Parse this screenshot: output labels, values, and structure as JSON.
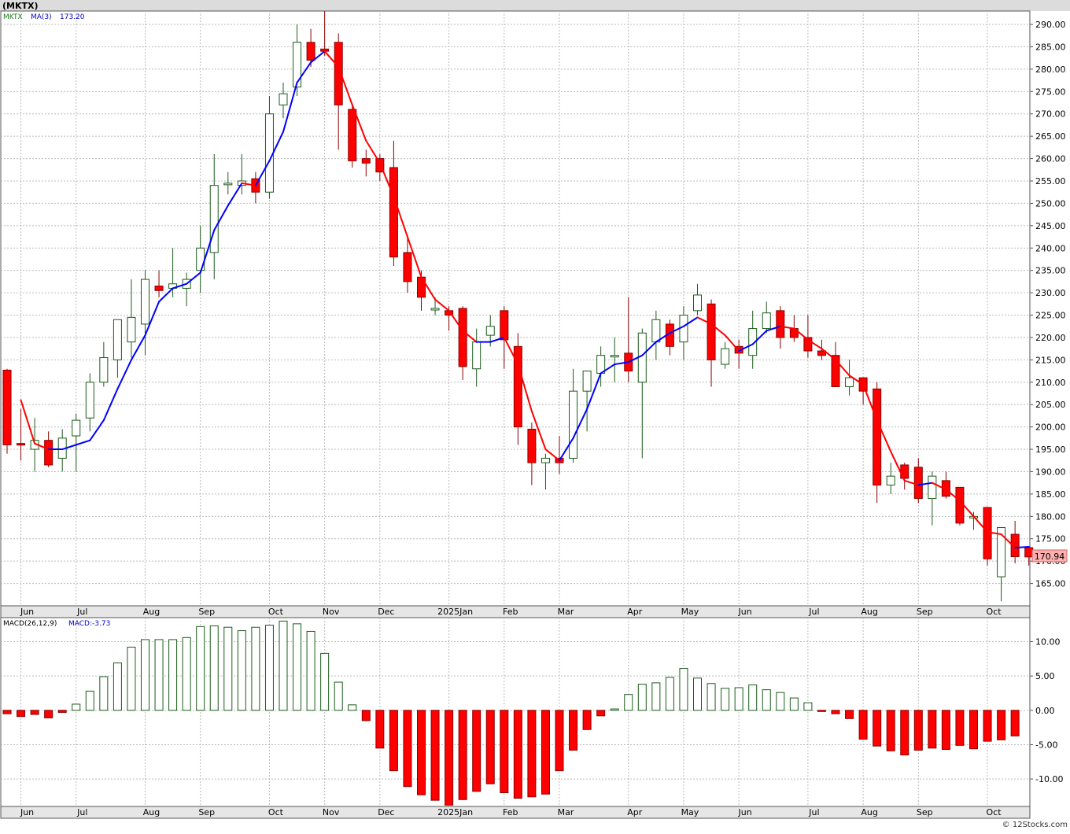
{
  "header": {
    "symbol_label": "(MKTX)"
  },
  "footer": {
    "watermark": "© 12Stocks.com"
  },
  "price_panel": {
    "legend_symbol": "MKTX",
    "legend_ma_label": "MA(3)",
    "legend_ma_value": "173.20",
    "last_price_label": "170.94"
  },
  "macd_panel": {
    "legend_label": "MACD(26,12,9)",
    "legend_value": "MACD:-3.73"
  },
  "colors": {
    "up_candle_border": "#1a5c1a",
    "down_candle_fill": "#ff0000",
    "ma_rising": "#0000ff",
    "ma_falling": "#ff0000",
    "grid": "#bbbbbb",
    "axis_band": "#e6e6e6",
    "last_price_box": "#ffb0b0"
  },
  "chart_data": [
    {
      "type": "candlestick",
      "frequency": "weekly",
      "y_axis_side": "right",
      "ylim": [
        160,
        293
      ],
      "yticks": [
        "165.00",
        "170.00",
        "175.00",
        "180.00",
        "185.00",
        "190.00",
        "195.00",
        "200.00",
        "205.00",
        "210.00",
        "215.00",
        "220.00",
        "225.00",
        "230.00",
        "235.00",
        "240.00",
        "245.00",
        "250.00",
        "255.00",
        "260.00",
        "265.00",
        "270.00",
        "275.00",
        "280.00",
        "285.00",
        "290.00"
      ],
      "xticks": [
        {
          "label": "Jun",
          "index": 1
        },
        {
          "label": "Jul",
          "index": 5
        },
        {
          "label": "Aug",
          "index": 10
        },
        {
          "label": "Sep",
          "index": 14
        },
        {
          "label": "Oct",
          "index": 19
        },
        {
          "label": "Nov",
          "index": 23
        },
        {
          "label": "Dec",
          "index": 27
        },
        {
          "label": "2025Jan",
          "index": 32
        },
        {
          "label": "Feb",
          "index": 36
        },
        {
          "label": "Mar",
          "index": 40
        },
        {
          "label": "Apr",
          "index": 45
        },
        {
          "label": "May",
          "index": 49
        },
        {
          "label": "Jun",
          "index": 53
        },
        {
          "label": "Jul",
          "index": 58
        },
        {
          "label": "Aug",
          "index": 62
        },
        {
          "label": "Sep",
          "index": 66
        },
        {
          "label": "Oct",
          "index": 71
        }
      ],
      "grid": true,
      "last_price": 170.94,
      "candles": [
        {
          "o": 212.7,
          "h": 213.0,
          "l": 194.0,
          "c": 196.0
        },
        {
          "o": 196.3,
          "h": 204.0,
          "l": 192.5,
          "c": 196.0
        },
        {
          "o": 195.0,
          "h": 202.0,
          "l": 190.0,
          "c": 197.0
        },
        {
          "o": 197.0,
          "h": 199.0,
          "l": 191.0,
          "c": 191.5
        },
        {
          "o": 193.0,
          "h": 199.5,
          "l": 190.0,
          "c": 197.5
        },
        {
          "o": 198.0,
          "h": 203.0,
          "l": 190.0,
          "c": 201.5
        },
        {
          "o": 202.0,
          "h": 212.0,
          "l": 199.0,
          "c": 210.0
        },
        {
          "o": 210.0,
          "h": 219.0,
          "l": 209.0,
          "c": 215.5
        },
        {
          "o": 215.0,
          "h": 223.0,
          "l": 211.0,
          "c": 224.0
        },
        {
          "o": 219.0,
          "h": 233.0,
          "l": 215.5,
          "c": 224.5
        },
        {
          "o": 223.0,
          "h": 235.0,
          "l": 216.0,
          "c": 233.0
        },
        {
          "o": 231.5,
          "h": 235.0,
          "l": 229.0,
          "c": 230.5
        },
        {
          "o": 231.0,
          "h": 240.0,
          "l": 229.0,
          "c": 232.0
        },
        {
          "o": 231.0,
          "h": 234.5,
          "l": 227.0,
          "c": 233.0
        },
        {
          "o": 235.0,
          "h": 245.0,
          "l": 230.0,
          "c": 240.0
        },
        {
          "o": 239.0,
          "h": 261.0,
          "l": 233.0,
          "c": 254.0
        },
        {
          "o": 254.5,
          "h": 257.0,
          "l": 252.0,
          "c": 254.5
        },
        {
          "o": 254.0,
          "h": 261.0,
          "l": 252.0,
          "c": 255.0
        },
        {
          "o": 255.5,
          "h": 257.0,
          "l": 250.0,
          "c": 252.5
        },
        {
          "o": 252.5,
          "h": 274.0,
          "l": 251.0,
          "c": 270.0
        },
        {
          "o": 272.0,
          "h": 277.0,
          "l": 269.0,
          "c": 274.5
        },
        {
          "o": 276.0,
          "h": 290.0,
          "l": 274.0,
          "c": 286.0
        },
        {
          "o": 286.0,
          "h": 289.0,
          "l": 280.5,
          "c": 282.0
        },
        {
          "o": 284.5,
          "h": 293.0,
          "l": 283.0,
          "c": 284.0
        },
        {
          "o": 286.0,
          "h": 288.0,
          "l": 262.0,
          "c": 272.0
        },
        {
          "o": 271.0,
          "h": 272.0,
          "l": 258.0,
          "c": 259.5
        },
        {
          "o": 260.0,
          "h": 262.0,
          "l": 256.0,
          "c": 259.0
        },
        {
          "o": 260.0,
          "h": 261.0,
          "l": 255.0,
          "c": 257.0
        },
        {
          "o": 258.0,
          "h": 264.0,
          "l": 236.0,
          "c": 238.0
        },
        {
          "o": 239.0,
          "h": 243.0,
          "l": 230.0,
          "c": 232.5
        },
        {
          "o": 233.5,
          "h": 235.0,
          "l": 226.0,
          "c": 229.0
        },
        {
          "o": 226.5,
          "h": 229.0,
          "l": 225.0,
          "c": 226.5
        },
        {
          "o": 226.0,
          "h": 227.0,
          "l": 221.5,
          "c": 225.0
        },
        {
          "o": 226.5,
          "h": 227.0,
          "l": 210.5,
          "c": 213.5
        },
        {
          "o": 213.0,
          "h": 222.0,
          "l": 209.0,
          "c": 219.0
        },
        {
          "o": 220.5,
          "h": 225.0,
          "l": 218.0,
          "c": 222.5
        },
        {
          "o": 226.0,
          "h": 227.0,
          "l": 213.0,
          "c": 219.5
        },
        {
          "o": 218.0,
          "h": 221.0,
          "l": 196.0,
          "c": 200.0
        },
        {
          "o": 199.5,
          "h": 201.0,
          "l": 187.0,
          "c": 192.0
        },
        {
          "o": 192.0,
          "h": 194.0,
          "l": 186.0,
          "c": 193.0
        },
        {
          "o": 193.0,
          "h": 198.0,
          "l": 189.5,
          "c": 192.0
        },
        {
          "o": 193.0,
          "h": 213.0,
          "l": 192.0,
          "c": 208.0
        },
        {
          "o": 208.0,
          "h": 212.0,
          "l": 199.0,
          "c": 212.5
        },
        {
          "o": 212.0,
          "h": 218.0,
          "l": 209.0,
          "c": 216.0
        },
        {
          "o": 216.0,
          "h": 220.0,
          "l": 210.0,
          "c": 216.0
        },
        {
          "o": 216.5,
          "h": 229.0,
          "l": 210.0,
          "c": 212.5
        },
        {
          "o": 210.0,
          "h": 222.0,
          "l": 193.0,
          "c": 221.0
        },
        {
          "o": 219.0,
          "h": 226.0,
          "l": 215.0,
          "c": 224.0
        },
        {
          "o": 223.0,
          "h": 224.0,
          "l": 216.0,
          "c": 218.0
        },
        {
          "o": 219.0,
          "h": 227.0,
          "l": 215.0,
          "c": 225.0
        },
        {
          "o": 226.0,
          "h": 232.0,
          "l": 225.0,
          "c": 229.5
        },
        {
          "o": 227.5,
          "h": 228.5,
          "l": 209.0,
          "c": 215.0
        },
        {
          "o": 214.0,
          "h": 219.0,
          "l": 213.0,
          "c": 217.5
        },
        {
          "o": 218.0,
          "h": 219.5,
          "l": 213.0,
          "c": 216.5
        },
        {
          "o": 216.0,
          "h": 226.0,
          "l": 213.0,
          "c": 222.0
        },
        {
          "o": 222.0,
          "h": 228.0,
          "l": 221.0,
          "c": 225.5
        },
        {
          "o": 226.0,
          "h": 227.0,
          "l": 217.5,
          "c": 220.0
        },
        {
          "o": 222.0,
          "h": 225.0,
          "l": 219.0,
          "c": 220.0
        },
        {
          "o": 220.0,
          "h": 225.0,
          "l": 215.5,
          "c": 217.0
        },
        {
          "o": 217.0,
          "h": 219.5,
          "l": 215.0,
          "c": 216.0
        },
        {
          "o": 216.0,
          "h": 219.0,
          "l": 209.5,
          "c": 209.0
        },
        {
          "o": 209.0,
          "h": 215.0,
          "l": 207.0,
          "c": 211.0
        },
        {
          "o": 211.0,
          "h": 211.0,
          "l": 205.0,
          "c": 208.0
        },
        {
          "o": 208.5,
          "h": 210.0,
          "l": 183.0,
          "c": 187.0
        },
        {
          "o": 187.0,
          "h": 192.0,
          "l": 185.0,
          "c": 189.0
        },
        {
          "o": 191.5,
          "h": 192.0,
          "l": 186.0,
          "c": 188.5
        },
        {
          "o": 191.0,
          "h": 193.0,
          "l": 183.0,
          "c": 184.0
        },
        {
          "o": 184.0,
          "h": 190.0,
          "l": 178.0,
          "c": 189.0
        },
        {
          "o": 188.0,
          "h": 190.0,
          "l": 184.0,
          "c": 184.5
        },
        {
          "o": 186.5,
          "h": 186.5,
          "l": 178.0,
          "c": 178.5
        },
        {
          "o": 180.0,
          "h": 181.0,
          "l": 177.0,
          "c": 180.0
        },
        {
          "o": 182.0,
          "h": 182.0,
          "l": 169.0,
          "c": 170.5
        },
        {
          "o": 166.5,
          "h": 177.5,
          "l": 161.0,
          "c": 177.5
        },
        {
          "o": 176.0,
          "h": 179.0,
          "l": 169.5,
          "c": 171.0
        },
        {
          "o": 173.0,
          "h": 173.0,
          "l": 169.0,
          "c": 170.94
        }
      ],
      "ma": {
        "label": "MA(3)",
        "values": [
          null,
          206.0,
          196.3,
          195.0,
          195.0,
          196.0,
          197.0,
          201.5,
          208.5,
          215.0,
          220.5,
          228.0,
          231.0,
          232.0,
          234.5,
          244.0,
          249.5,
          254.5,
          254.0,
          259.5,
          266.0,
          277.0,
          281.5,
          284.0,
          280.5,
          272.0,
          264.0,
          259.0,
          251.5,
          242.5,
          233.5,
          228.5,
          226.0,
          221.5,
          219.0,
          219.0,
          220.0,
          214.0,
          203.5,
          195.0,
          192.5,
          197.5,
          204.0,
          212.0,
          214.0,
          214.5,
          216.0,
          219.0,
          221.0,
          222.5,
          224.5,
          223.0,
          220.5,
          217.0,
          218.5,
          221.5,
          222.5,
          222.0,
          219.5,
          217.5,
          215.0,
          211.5,
          209.5,
          201.5,
          194.5,
          188.0,
          187.0,
          187.5,
          186.0,
          183.5,
          180.0,
          176.5,
          176.0,
          173.0,
          173.2
        ]
      }
    },
    {
      "type": "bar",
      "indicator": "MACD(26,12,9)",
      "y_axis_side": "right",
      "ylim": [
        -14,
        13.5
      ],
      "yticks": [
        "-10.00",
        "-5.00",
        "0.00",
        "5.00",
        "10.00"
      ],
      "grid": true,
      "values": [
        -0.5,
        -0.9,
        -0.6,
        -1.1,
        -0.3,
        0.9,
        2.8,
        4.9,
        6.9,
        9.2,
        10.3,
        10.3,
        10.3,
        10.6,
        12.2,
        12.3,
        12.1,
        11.6,
        12.1,
        12.4,
        13.0,
        12.6,
        11.5,
        8.3,
        4.1,
        0.8,
        -1.5,
        -5.5,
        -8.8,
        -11.1,
        -12.3,
        -13.1,
        -13.8,
        -13.0,
        -11.8,
        -10.7,
        -12.0,
        -12.8,
        -12.6,
        -12.2,
        -8.8,
        -5.8,
        -2.8,
        -0.8,
        0.2,
        2.3,
        3.8,
        4.0,
        4.8,
        6.1,
        4.7,
        3.9,
        3.2,
        3.3,
        3.7,
        3.0,
        2.6,
        1.8,
        1.1,
        -0.1,
        -0.5,
        -1.2,
        -4.2,
        -5.2,
        -5.9,
        -6.5,
        -5.8,
        -5.5,
        -5.7,
        -5.1,
        -5.6,
        -4.5,
        -4.3,
        -3.73
      ]
    }
  ]
}
